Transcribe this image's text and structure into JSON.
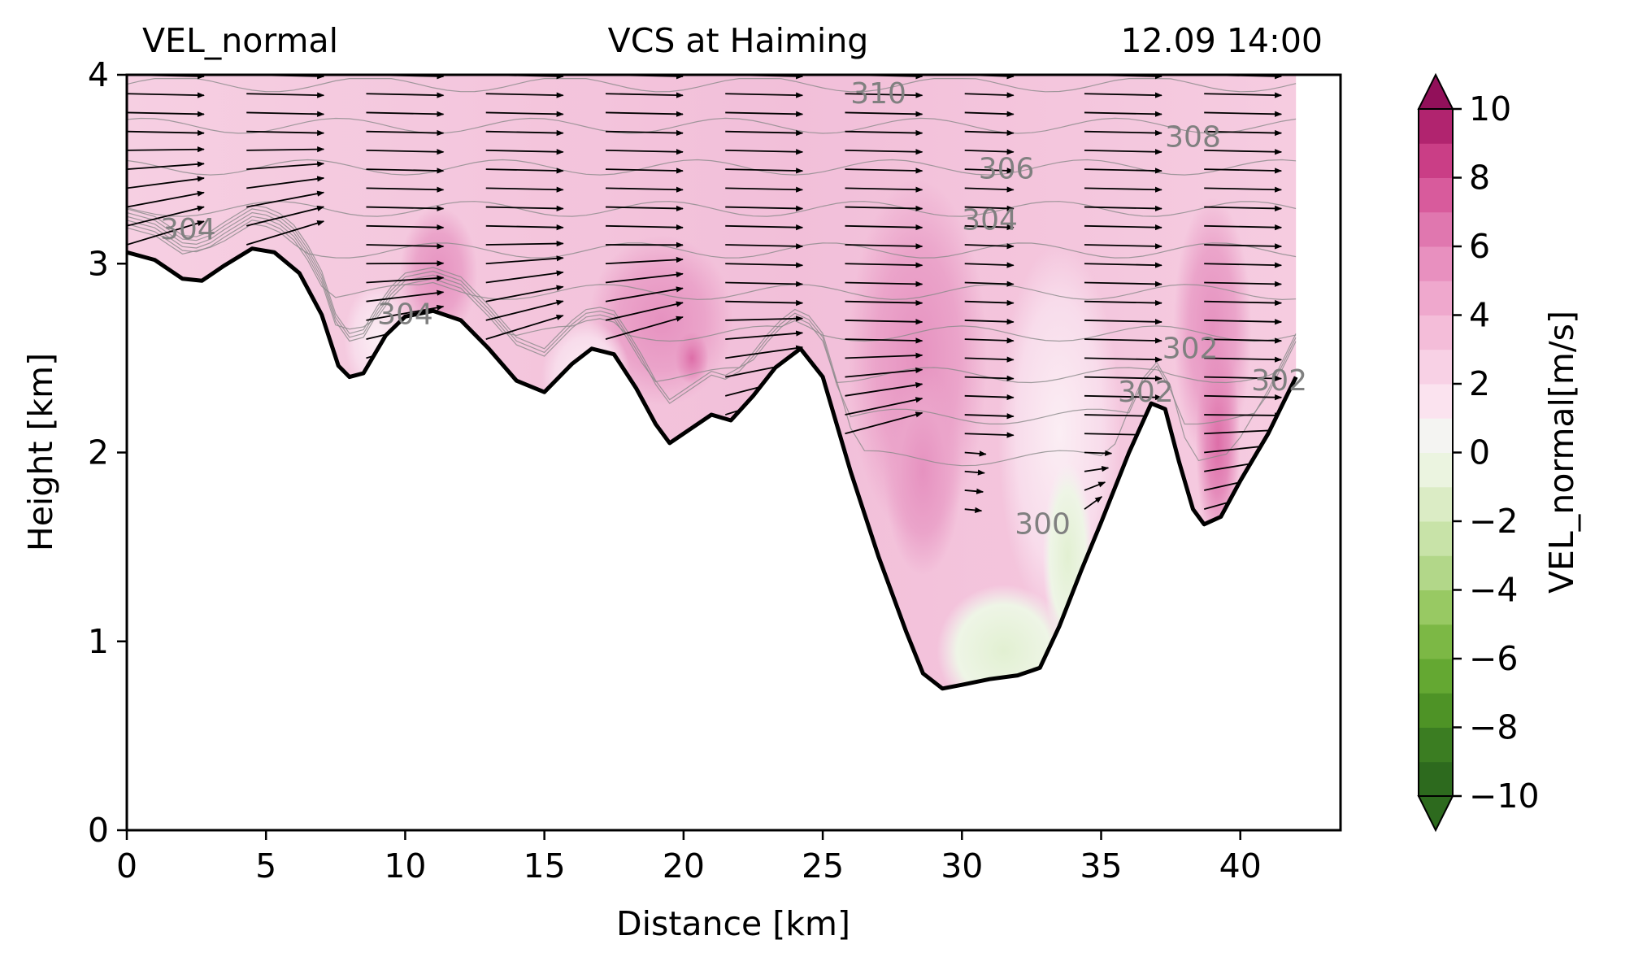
{
  "header": {
    "title_left": "VEL_normal",
    "title_center": "VCS at Haiming",
    "title_right": "12.09 14:00"
  },
  "chart_data": {
    "type": "contourf",
    "xlabel": "Distance [km]",
    "ylabel": "Height [km]",
    "xlim": [
      0,
      43.6
    ],
    "ylim": [
      0,
      4
    ],
    "xticks": [
      0,
      5,
      10,
      15,
      20,
      25,
      30,
      35,
      40
    ],
    "yticks": [
      0,
      1,
      2,
      3,
      4
    ],
    "grid": false,
    "variable": "VEL_normal",
    "colorbar": {
      "label": "VEL_normal[m/s]",
      "range": [
        -10,
        10
      ],
      "step": 1,
      "ticks": [
        -10,
        -8,
        -6,
        -4,
        -2,
        0,
        2,
        4,
        6,
        8,
        10
      ],
      "extend": "both",
      "colormap": "PiYG_r",
      "colors": [
        "#2d6a1e",
        "#3b7d22",
        "#4e9326",
        "#64a832",
        "#7cb845",
        "#98c963",
        "#b2d789",
        "#c8e3a8",
        "#dbecc5",
        "#ebf4e0",
        "#f4f4f2",
        "#fbe3ef",
        "#f8d1e5",
        "#f4bdd9",
        "#efa8cd",
        "#e890bf",
        "#e077af",
        "#d85b9c",
        "#ca3e86",
        "#b1246f",
        "#92105a"
      ]
    },
    "terrain": {
      "x": [
        0,
        1,
        2,
        2.7,
        3.5,
        4.5,
        5.3,
        6.2,
        7,
        7.6,
        8,
        8.5,
        9.3,
        10,
        11,
        12,
        13,
        14,
        15,
        16,
        16.7,
        17.5,
        18.3,
        19,
        19.5,
        20.3,
        21,
        21.7,
        22.5,
        23.3,
        24.2,
        25,
        26,
        27,
        28,
        28.6,
        29.3,
        30,
        31,
        32,
        32.8,
        33.5,
        34.3,
        35,
        36,
        36.8,
        37.3,
        37.8,
        38.3,
        38.7,
        39.3,
        40,
        41,
        42
      ],
      "y": [
        3.06,
        3.02,
        2.92,
        2.91,
        2.99,
        3.08,
        3.06,
        2.95,
        2.73,
        2.46,
        2.4,
        2.42,
        2.62,
        2.72,
        2.75,
        2.7,
        2.55,
        2.38,
        2.32,
        2.47,
        2.55,
        2.52,
        2.34,
        2.15,
        2.05,
        2.13,
        2.2,
        2.17,
        2.3,
        2.45,
        2.55,
        2.4,
        1.9,
        1.45,
        1.05,
        0.83,
        0.75,
        0.77,
        0.8,
        0.82,
        0.86,
        1.08,
        1.38,
        1.63,
        2.0,
        2.26,
        2.23,
        1.95,
        1.7,
        1.62,
        1.66,
        1.85,
        2.1,
        2.4
      ]
    },
    "theta_contour_labels": [
      {
        "value": "304",
        "x": 2.2,
        "y": 3.13
      },
      {
        "value": "304",
        "x": 10.0,
        "y": 2.68
      },
      {
        "value": "310",
        "x": 27.0,
        "y": 3.85
      },
      {
        "value": "306",
        "x": 31.6,
        "y": 3.45
      },
      {
        "value": "308",
        "x": 38.3,
        "y": 3.62
      },
      {
        "value": "304",
        "x": 31.0,
        "y": 3.18
      },
      {
        "value": "302",
        "x": 38.2,
        "y": 2.5
      },
      {
        "value": "302",
        "x": 36.6,
        "y": 2.27
      },
      {
        "value": "302",
        "x": 41.4,
        "y": 2.33
      },
      {
        "value": "300",
        "x": 32.9,
        "y": 1.57
      }
    ],
    "vectors": {
      "columns_x": [
        0,
        4.3,
        8.6,
        12.9,
        17.2,
        21.5,
        25.8,
        30.1,
        34.4,
        38.7
      ],
      "arrow_levels_y": [
        4.0,
        3.9,
        3.8,
        3.7,
        3.6,
        3.5,
        3.4,
        3.3,
        3.2,
        3.1,
        3.0,
        2.9,
        2.8,
        2.7,
        2.6,
        2.5,
        2.4,
        2.3,
        2.2,
        2.1,
        2.0,
        1.9,
        1.8,
        1.7
      ]
    }
  }
}
